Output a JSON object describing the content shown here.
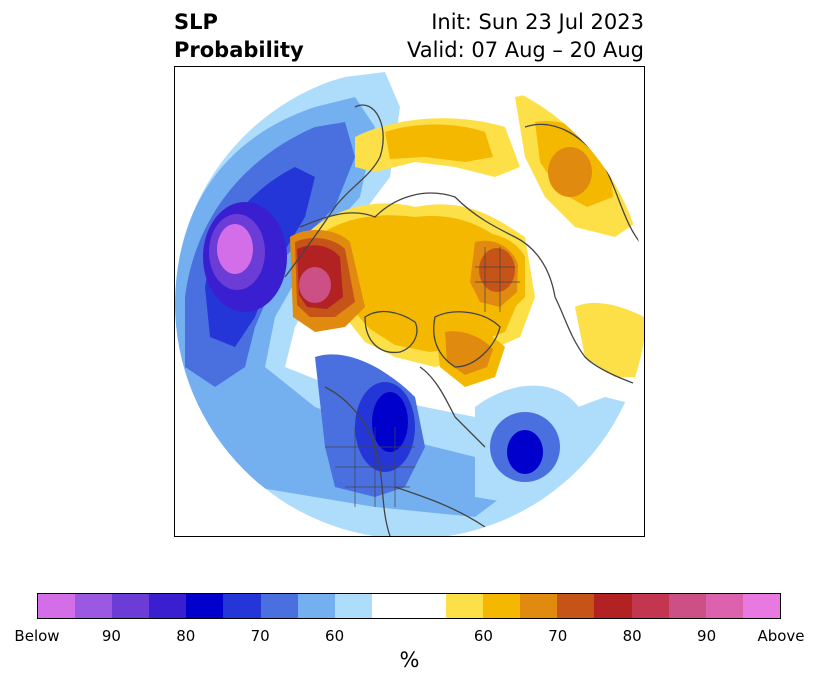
{
  "title": {
    "left_line1": "SLP",
    "left_line2": "Probability",
    "right_line1": "Init: Sun 23 Jul 2023",
    "right_line2": "Valid: 07 Aug – 20 Aug"
  },
  "map": {
    "projection": "north-polar-stereographic",
    "below_colors": [
      "#d46ee8",
      "#9b58e0",
      "#6b3cd6",
      "#3a1fd0",
      "#0000cc",
      "#2436d8",
      "#4a70e0",
      "#74b0f0",
      "#aedcfb"
    ],
    "above_colors": [
      "#fde047",
      "#f5b800",
      "#e08a10",
      "#c65418",
      "#b22222",
      "#c23650",
      "#cc4f86",
      "#dc62ad",
      "#e879e0"
    ],
    "neutral_color": "#ffffff",
    "coastline_color": "#444444"
  },
  "colorbar": {
    "segments": [
      "#d46ee8",
      "#9b58e0",
      "#6b3cd6",
      "#3a1fd0",
      "#0000cc",
      "#2436d8",
      "#4a70e0",
      "#74b0f0",
      "#aedcfb",
      "#ffffff",
      "#fde047",
      "#f5b800",
      "#e08a10",
      "#c65418",
      "#b22222",
      "#c23650",
      "#cc4f86",
      "#dc62ad",
      "#e879e0"
    ],
    "ticks": [
      "Below",
      "90",
      "80",
      "70",
      "60",
      "60",
      "70",
      "80",
      "90",
      "Above"
    ],
    "unit": "%"
  }
}
